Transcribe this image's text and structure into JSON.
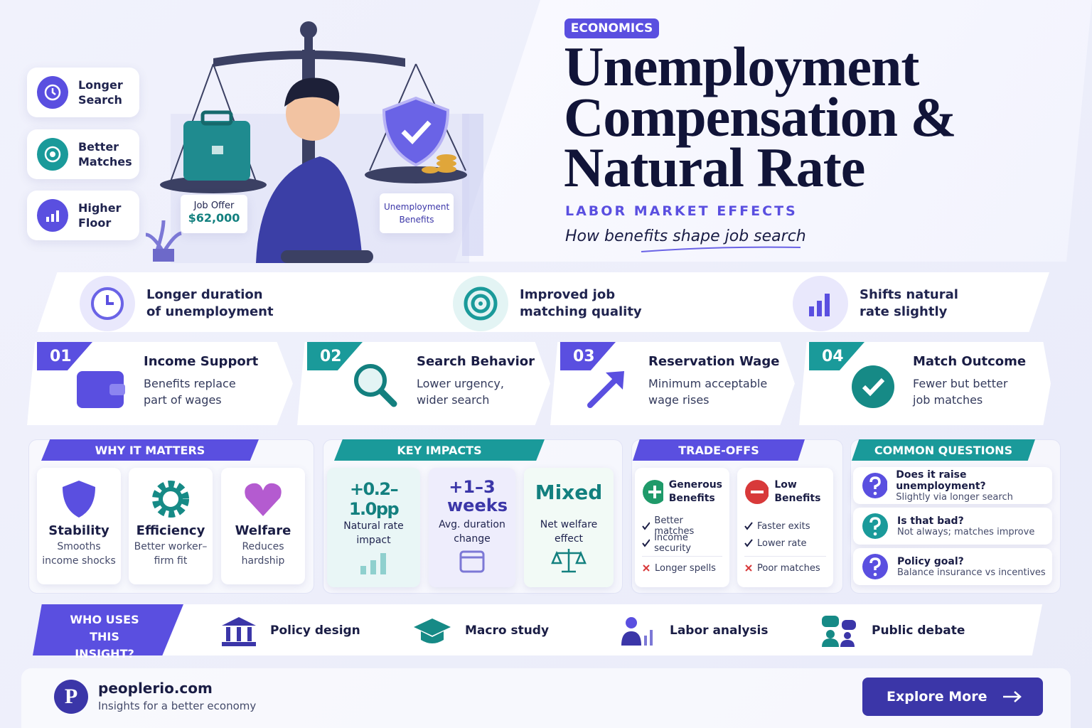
{
  "hero": {
    "badge": "ECONOMICS",
    "title_lines": [
      "Unemployment",
      "Compensation &",
      "Natural Rate"
    ],
    "subtitle": "LABOR MARKET EFFECTS",
    "tagline": "How benefits shape job search"
  },
  "side_badges": [
    "Longer Search",
    "Better Matches",
    "Higher Floor"
  ],
  "illustration": {
    "job_offer_label": "Job Offer",
    "job_offer_value": "$62,000",
    "benefits_label": "Unemployment Benefits"
  },
  "effects": [
    "Longer duration of unemployment",
    "Improved job matching quality",
    "Shifts natural rate slightly"
  ],
  "steps": [
    {
      "number": "01",
      "title": "Income Support",
      "text": "Benefits replace part of wages"
    },
    {
      "number": "02",
      "title": "Search Behavior",
      "text": "Lower urgency, wider search"
    },
    {
      "number": "03",
      "title": "Reservation Wage",
      "text": "Minimum acceptable wage rises"
    },
    {
      "number": "04",
      "title": "Match Outcome",
      "text": "Fewer but better job matches"
    }
  ],
  "why_it_matters": {
    "heading": "WHY IT MATTERS",
    "items": [
      {
        "title": "Stability",
        "text": "Smooths income shocks"
      },
      {
        "title": "Efficiency",
        "text": "Better worker–firm fit"
      },
      {
        "title": "Welfare",
        "text": "Reduces hardship"
      }
    ]
  },
  "key_impacts": {
    "heading": "KEY IMPACTS",
    "items": [
      {
        "value": "+0.2–1.0pp",
        "label": "Natural rate impact"
      },
      {
        "value": "+1–3 weeks",
        "label": "Avg. duration change"
      },
      {
        "value": "Mixed",
        "label": "Net welfare effect"
      }
    ]
  },
  "trade_offs": {
    "heading": "TRADE-OFFS",
    "columns": [
      {
        "title": "Generous Benefits",
        "pros": [
          "Better matches",
          "Income security"
        ],
        "cons": [
          "Longer spells"
        ]
      },
      {
        "title": "Low Benefits",
        "pros": [
          "Faster exits",
          "Lower rate"
        ],
        "cons": [
          "Poor matches"
        ]
      }
    ]
  },
  "common_questions": {
    "heading": "COMMON QUESTIONS",
    "items": [
      {
        "question": "Does it raise unemployment?",
        "answer": "Slightly via longer search"
      },
      {
        "question": "Is that bad?",
        "answer": "Not always; matches improve"
      },
      {
        "question": "Policy goal?",
        "answer": "Balance insurance vs incentives"
      }
    ]
  },
  "who_uses": {
    "heading": "WHO USES THIS INSIGHT?",
    "items": [
      "Policy design",
      "Macro study",
      "Labor analysis",
      "Public debate"
    ]
  },
  "footer": {
    "logo_letter": "P",
    "site": "peoplerio.com",
    "tagline": "Insights for a better economy",
    "button": "Explore More"
  }
}
